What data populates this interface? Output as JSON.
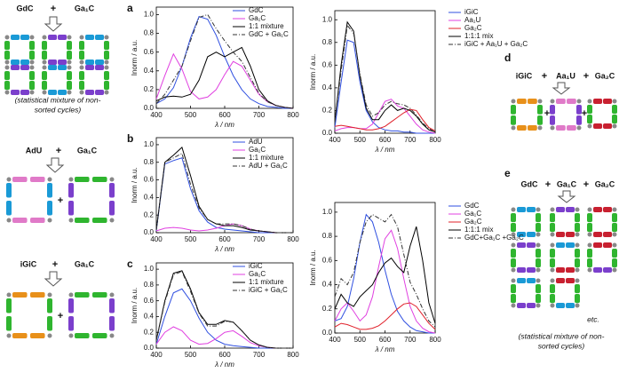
{
  "chart_data": [
    {
      "type": "line",
      "panel_label": "a",
      "x_label": "λ / nm",
      "y_label": "Inorm / a.u.",
      "x": [
        400,
        425,
        450,
        475,
        500,
        525,
        550,
        575,
        600,
        625,
        650,
        675,
        700,
        725,
        750,
        775,
        800
      ],
      "xlim": [
        400,
        800
      ],
      "xticks": [
        400,
        500,
        600,
        700,
        800
      ],
      "ylim": [
        0,
        1.08
      ],
      "yticks": [
        {
          "value": 0,
          "label": "0.0"
        },
        {
          "value": 0.2,
          "label": "0.2"
        },
        {
          "value": 0.4,
          "label": "0.4"
        },
        {
          "value": 0.6,
          "label": "0.6"
        },
        {
          "value": 0.8,
          "label": "0.8"
        },
        {
          "value": 1,
          "label": "1.0"
        }
      ],
      "series": [
        {
          "name": "GdC",
          "color": "#2f4fe0",
          "values": [
            0.05,
            0.1,
            0.22,
            0.45,
            0.75,
            0.98,
            0.95,
            0.78,
            0.55,
            0.35,
            0.2,
            0.1,
            0.05,
            0.02,
            0.01,
            0,
            0
          ]
        },
        {
          "name": "Ga₁C",
          "color": "#e040e0",
          "values": [
            0.1,
            0.35,
            0.58,
            0.42,
            0.18,
            0.1,
            0.12,
            0.2,
            0.36,
            0.5,
            0.45,
            0.3,
            0.15,
            0.07,
            0.03,
            0.01,
            0
          ]
        },
        {
          "name": "1:1 mixture",
          "color": "#000000",
          "values": [
            0.08,
            0.12,
            0.13,
            0.12,
            0.15,
            0.3,
            0.55,
            0.6,
            0.55,
            0.6,
            0.65,
            0.45,
            0.2,
            0.08,
            0.03,
            0.01,
            0
          ]
        },
        {
          "name": "GdC + Ga₁C",
          "color": "#333333",
          "dash": true,
          "values": [
            0.05,
            0.15,
            0.3,
            0.45,
            0.72,
            0.97,
            1.0,
            0.85,
            0.72,
            0.6,
            0.5,
            0.33,
            0.16,
            0.07,
            0.03,
            0.01,
            0
          ]
        }
      ]
    },
    {
      "type": "line",
      "panel_label": "b",
      "x_label": "λ / nm",
      "y_label": "Inorm / a.u.",
      "x": [
        400,
        425,
        450,
        475,
        500,
        525,
        550,
        575,
        600,
        625,
        650,
        675,
        700,
        725,
        750,
        775,
        800
      ],
      "xlim": [
        400,
        800
      ],
      "xticks": [
        400,
        500,
        600,
        700,
        800
      ],
      "ylim": [
        0,
        1.08
      ],
      "yticks": [
        {
          "value": 0,
          "label": "0.0"
        },
        {
          "value": 0.2,
          "label": "0.2"
        },
        {
          "value": 0.4,
          "label": "0.4"
        },
        {
          "value": 0.6,
          "label": "0.6"
        },
        {
          "value": 0.8,
          "label": "0.8"
        },
        {
          "value": 1,
          "label": "1.0"
        }
      ],
      "series": [
        {
          "name": "AdU",
          "color": "#2f4fe0",
          "values": [
            0.02,
            0.78,
            0.82,
            0.85,
            0.5,
            0.25,
            0.12,
            0.06,
            0.04,
            0.03,
            0.02,
            0.01,
            0,
            0,
            0,
            0,
            0
          ]
        },
        {
          "name": "Ga₁C",
          "color": "#e040e0",
          "values": [
            0.02,
            0.05,
            0.06,
            0.05,
            0.03,
            0.02,
            0.03,
            0.05,
            0.08,
            0.1,
            0.08,
            0.04,
            0.02,
            0.01,
            0,
            0,
            0
          ]
        },
        {
          "name": "1:1 mixture",
          "color": "#000000",
          "values": [
            0.03,
            0.8,
            0.88,
            0.97,
            0.65,
            0.3,
            0.15,
            0.1,
            0.08,
            0.08,
            0.06,
            0.03,
            0.02,
            0.01,
            0,
            0,
            0
          ]
        },
        {
          "name": "AdU + Ga₁C",
          "color": "#333333",
          "dash": true,
          "values": [
            0.03,
            0.8,
            0.85,
            0.9,
            0.55,
            0.28,
            0.15,
            0.1,
            0.1,
            0.1,
            0.08,
            0.04,
            0.02,
            0.01,
            0,
            0,
            0
          ]
        }
      ]
    },
    {
      "type": "line",
      "panel_label": "c",
      "x_label": "λ / nm",
      "y_label": "Inorm / a.u.",
      "x": [
        400,
        425,
        450,
        475,
        500,
        525,
        550,
        575,
        600,
        625,
        650,
        675,
        700,
        725,
        750,
        775,
        800
      ],
      "xlim": [
        400,
        800
      ],
      "xticks": [
        400,
        500,
        600,
        700,
        800
      ],
      "ylim": [
        0,
        1.08
      ],
      "yticks": [
        {
          "value": 0,
          "label": "0.0"
        },
        {
          "value": 0.2,
          "label": "0.2"
        },
        {
          "value": 0.4,
          "label": "0.4"
        },
        {
          "value": 0.6,
          "label": "0.6"
        },
        {
          "value": 0.8,
          "label": "0.8"
        },
        {
          "value": 1,
          "label": "1.0"
        }
      ],
      "series": [
        {
          "name": "iGiC",
          "color": "#2f4fe0",
          "values": [
            0.05,
            0.4,
            0.7,
            0.75,
            0.6,
            0.38,
            0.2,
            0.1,
            0.05,
            0.03,
            0.02,
            0.01,
            0,
            0,
            0,
            0,
            0
          ]
        },
        {
          "name": "Ga₁C",
          "color": "#e040e0",
          "values": [
            0.05,
            0.2,
            0.27,
            0.22,
            0.1,
            0.05,
            0.06,
            0.12,
            0.2,
            0.22,
            0.15,
            0.07,
            0.03,
            0.01,
            0,
            0,
            0
          ]
        },
        {
          "name": "1:1 mixture",
          "color": "#000000",
          "values": [
            0.1,
            0.6,
            0.95,
            0.98,
            0.75,
            0.45,
            0.3,
            0.3,
            0.35,
            0.33,
            0.22,
            0.1,
            0.04,
            0.01,
            0,
            0,
            0
          ]
        },
        {
          "name": "iGiC + Ga₁C",
          "color": "#333333",
          "dash": true,
          "values": [
            0.1,
            0.58,
            0.93,
            0.97,
            0.72,
            0.44,
            0.28,
            0.28,
            0.34,
            0.33,
            0.22,
            0.1,
            0.04,
            0.01,
            0,
            0,
            0
          ]
        }
      ]
    },
    {
      "type": "line",
      "x_label": "λ / nm",
      "y_label": "Inorm / a.u.",
      "x": [
        400,
        425,
        450,
        475,
        500,
        525,
        550,
        575,
        600,
        625,
        650,
        675,
        700,
        725,
        750,
        775,
        800
      ],
      "xlim": [
        400,
        800
      ],
      "xticks": [
        400,
        500,
        600,
        700,
        800
      ],
      "ylim": [
        0,
        1.08
      ],
      "yticks": [
        {
          "value": 0,
          "label": "0.0"
        },
        {
          "value": 0.2,
          "label": "0.2"
        },
        {
          "value": 0.4,
          "label": "0.4"
        },
        {
          "value": 0.6,
          "label": "0.6"
        },
        {
          "value": 0.8,
          "label": "0.8"
        },
        {
          "value": 1,
          "label": "1.0"
        }
      ],
      "series": [
        {
          "name": "iGiC",
          "color": "#2f4fe0",
          "values": [
            0.05,
            0.45,
            0.82,
            0.8,
            0.45,
            0.2,
            0.1,
            0.05,
            0.03,
            0.02,
            0.02,
            0.01,
            0.01,
            0,
            0,
            0,
            0
          ]
        },
        {
          "name": "Aa₁U",
          "color": "#e040e0",
          "values": [
            0.02,
            0.04,
            0.05,
            0.05,
            0.04,
            0.04,
            0.08,
            0.18,
            0.28,
            0.3,
            0.24,
            0.22,
            0.15,
            0.08,
            0.03,
            0.01,
            0
          ]
        },
        {
          "name": "Ga₂C",
          "color": "#e0202a",
          "values": [
            0.06,
            0.07,
            0.06,
            0.05,
            0.04,
            0.03,
            0.03,
            0.04,
            0.06,
            0.1,
            0.14,
            0.18,
            0.21,
            0.2,
            0.12,
            0.05,
            0.02
          ]
        },
        {
          "name": "1:1:1 mix",
          "color": "#000000",
          "values": [
            0.1,
            0.6,
            0.98,
            0.9,
            0.5,
            0.22,
            0.12,
            0.12,
            0.2,
            0.25,
            0.2,
            0.22,
            0.2,
            0.15,
            0.08,
            0.03,
            0.01
          ]
        },
        {
          "name": "iGiC + Aa₁U + Ga₂C",
          "color": "#333333",
          "dash": true,
          "values": [
            0.1,
            0.55,
            0.95,
            0.88,
            0.52,
            0.25,
            0.15,
            0.18,
            0.25,
            0.28,
            0.26,
            0.25,
            0.22,
            0.16,
            0.09,
            0.04,
            0.01
          ]
        }
      ]
    },
    {
      "type": "line",
      "x_label": "λ / nm",
      "y_label": "Inorm / a.u.",
      "x": [
        400,
        425,
        450,
        475,
        500,
        525,
        550,
        575,
        600,
        625,
        650,
        675,
        700,
        725,
        750,
        775,
        800
      ],
      "xlim": [
        400,
        800
      ],
      "xticks": [
        400,
        500,
        600,
        700,
        800
      ],
      "ylim": [
        0,
        1.08
      ],
      "yticks": [
        {
          "value": 0,
          "label": "0.0"
        },
        {
          "value": 0.2,
          "label": "0.2"
        },
        {
          "value": 0.4,
          "label": "0.4"
        },
        {
          "value": 0.6,
          "label": "0.6"
        },
        {
          "value": 0.8,
          "label": "0.8"
        },
        {
          "value": 1,
          "label": "1.0"
        }
      ],
      "series": [
        {
          "name": "GdC",
          "color": "#2f4fe0",
          "values": [
            0.1,
            0.12,
            0.22,
            0.45,
            0.75,
            0.98,
            0.92,
            0.75,
            0.52,
            0.32,
            0.18,
            0.1,
            0.05,
            0.02,
            0.01,
            0,
            0
          ]
        },
        {
          "name": "Ga₁C",
          "color": "#e040e0",
          "values": [
            0.1,
            0.2,
            0.25,
            0.18,
            0.1,
            0.15,
            0.3,
            0.55,
            0.78,
            0.85,
            0.7,
            0.45,
            0.22,
            0.1,
            0.04,
            0.01,
            0
          ]
        },
        {
          "name": "Ga₂C",
          "color": "#e0202a",
          "values": [
            0.05,
            0.08,
            0.07,
            0.05,
            0.03,
            0.03,
            0.04,
            0.06,
            0.1,
            0.15,
            0.2,
            0.24,
            0.25,
            0.22,
            0.15,
            0.08,
            0.03
          ]
        },
        {
          "name": "1:1:1 mix",
          "color": "#000000",
          "values": [
            0.2,
            0.32,
            0.25,
            0.22,
            0.3,
            0.35,
            0.4,
            0.5,
            0.58,
            0.62,
            0.55,
            0.5,
            0.72,
            0.88,
            0.6,
            0.25,
            0.08
          ]
        },
        {
          "name": "GdC+Ga₁C +Ga₂C",
          "color": "#333333",
          "dash": true,
          "values": [
            0.3,
            0.45,
            0.4,
            0.5,
            0.75,
            0.92,
            0.98,
            0.95,
            0.92,
            0.98,
            0.88,
            0.65,
            0.42,
            0.32,
            0.2,
            0.1,
            0.05
          ]
        }
      ]
    }
  ],
  "schematics": {
    "plus": "+",
    "top": {
      "reagents": [
        "GdC",
        "Ga₁C"
      ],
      "caption": [
        "(statistical mixture of non-",
        "sorted cycles)"
      ]
    },
    "middle": {
      "reagents": [
        "AdU",
        "Ga₁C"
      ]
    },
    "bottom": {
      "reagents": [
        "iGiC",
        "Ga₁C"
      ]
    },
    "d": {
      "panel_label": "d",
      "reagents": [
        "iGiC",
        "Aa₁U",
        "Ga₂C"
      ]
    },
    "e": {
      "panel_label": "e",
      "reagents": [
        "GdC",
        "Ga₁C",
        "Ga₂C"
      ],
      "note": "etc.",
      "caption": [
        "(statistical mixture of non-",
        "sorted cycles)"
      ]
    }
  }
}
